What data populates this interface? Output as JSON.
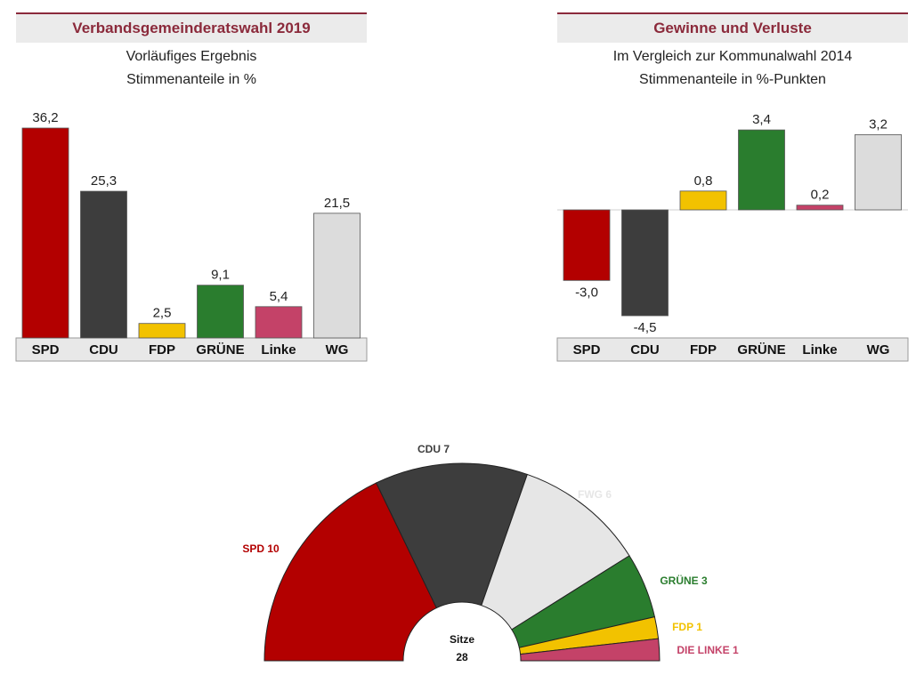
{
  "chart_data": [
    {
      "type": "bar",
      "title": "Verbandsgemeinderatswahl 2019",
      "subtitle": [
        "Vorläufiges Ergebnis",
        "Stimmenanteile in %"
      ],
      "categories": [
        "SPD",
        "CDU",
        "FDP",
        "GRÜNE",
        "Linke",
        "WG"
      ],
      "values": [
        36.2,
        25.3,
        2.5,
        9.1,
        5.4,
        21.5
      ],
      "labels": [
        "36,2",
        "25,3",
        "2,5",
        "9,1",
        "5,4",
        "21,5"
      ],
      "colors": [
        "#b30000",
        "#3d3d3d",
        "#f2c200",
        "#2a7d2e",
        "#c44268",
        "#dcdcdc"
      ],
      "ylim": [
        0,
        37
      ]
    },
    {
      "type": "bar",
      "title": "Gewinne und Verluste",
      "subtitle": [
        "Im Vergleich zur Kommunalwahl 2014",
        "Stimmenanteile in %-Punkten"
      ],
      "categories": [
        "SPD",
        "CDU",
        "FDP",
        "GRÜNE",
        "Linke",
        "WG"
      ],
      "values": [
        -3.0,
        -4.5,
        0.8,
        3.4,
        0.2,
        3.2
      ],
      "labels": [
        "-3,0",
        "-4,5",
        "0,8",
        "3,4",
        "0,2",
        "3,2"
      ],
      "colors": [
        "#b30000",
        "#3d3d3d",
        "#f2c200",
        "#2a7d2e",
        "#c44268",
        "#dcdcdc"
      ],
      "ylim": [
        -4.5,
        3.4
      ]
    },
    {
      "type": "pie",
      "subtype": "parliament-semicircle",
      "center_title": "Sitze",
      "total": 28,
      "series": [
        {
          "name": "SPD",
          "value": 10,
          "label": "SPD 10",
          "color": "#b30000"
        },
        {
          "name": "CDU",
          "value": 7,
          "label": "CDU 7",
          "color": "#3d3d3d"
        },
        {
          "name": "FWG",
          "value": 6,
          "label": "FWG 6",
          "color": "#e6e6e6"
        },
        {
          "name": "GRÜNE",
          "value": 3,
          "label": "GRÜNE 3",
          "color": "#2a7d2e"
        },
        {
          "name": "FDP",
          "value": 1,
          "label": "FDP 1",
          "color": "#f2c200"
        },
        {
          "name": "DIE LINKE",
          "value": 1,
          "label": "DIE LINKE 1",
          "color": "#c44268"
        }
      ]
    }
  ]
}
